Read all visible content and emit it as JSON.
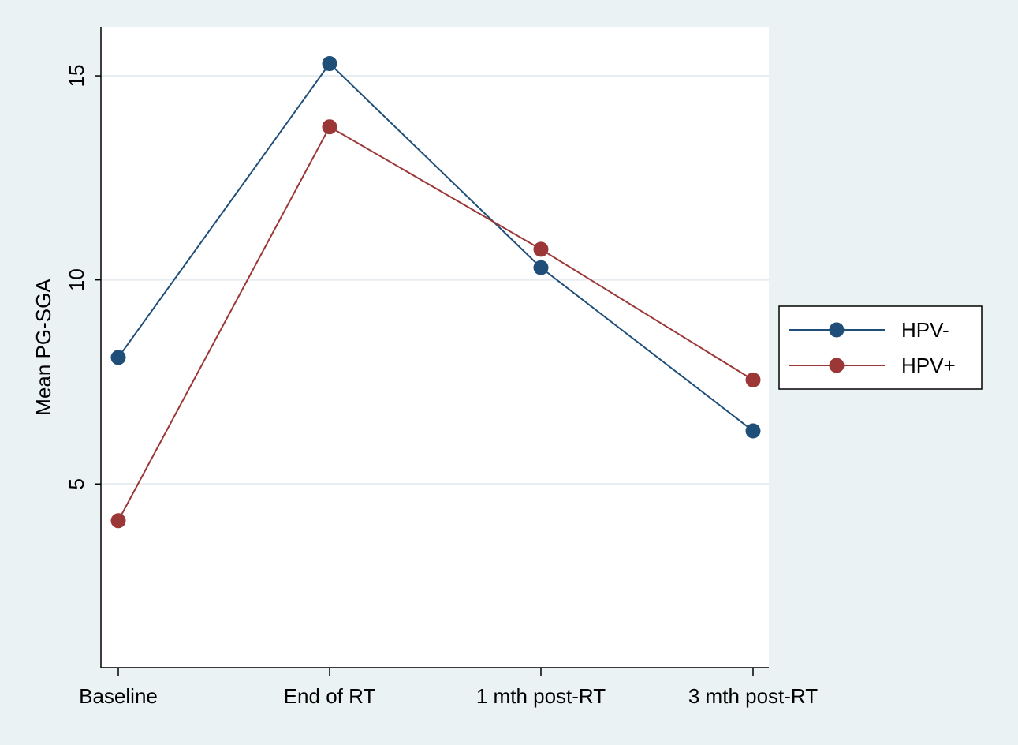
{
  "chart_data": {
    "type": "line",
    "title": "",
    "xlabel": "",
    "ylabel": "Mean PG-SGA",
    "categories": [
      "Baseline",
      "End of RT",
      "1 mth post-RT",
      "3 mth post-RT"
    ],
    "ylim": [
      0.5,
      16.2
    ],
    "yticks": [
      5,
      10,
      15
    ],
    "grid": true,
    "legend_position": "right",
    "series": [
      {
        "name": "HPV-",
        "color": "#1f4e79",
        "values": [
          8.1,
          15.3,
          10.3,
          6.3
        ]
      },
      {
        "name": "HPV+",
        "color": "#9b3737",
        "values": [
          4.1,
          13.75,
          10.75,
          7.55
        ]
      }
    ]
  }
}
